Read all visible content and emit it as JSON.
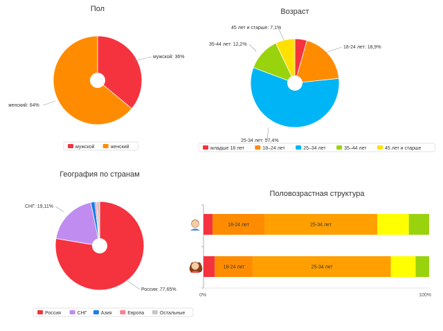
{
  "chart_data": [
    {
      "type": "pie",
      "title": "Пол",
      "categories": [
        "мужской",
        "женский"
      ],
      "values": [
        36,
        64
      ],
      "data_labels": [
        "мужской: 36%",
        "женский: 64%"
      ],
      "colors": [
        "#f5333f",
        "#ff8c00"
      ],
      "legend": [
        "мужской",
        "женский"
      ],
      "legend_position": "bottom"
    },
    {
      "type": "pie",
      "title": "Возраст",
      "categories": [
        "младше 18 лет",
        "18–24 лет",
        "25–34 лет",
        "35–44 лет",
        "45 лет и старше"
      ],
      "values": [
        4.4,
        18.9,
        57.4,
        12.2,
        7.1
      ],
      "data_labels": [
        "",
        "18-24 лет: 18,9%",
        "25-34 лет: 57,4%",
        "35-44 лет: 12,2%",
        "45 лет и старше: 7,1%"
      ],
      "colors": [
        "#f5333f",
        "#ff8c00",
        "#00b5f5",
        "#99d30e",
        "#ffe100"
      ],
      "legend": [
        "младше 18 лет",
        "18–24 лет",
        "25–34 лет",
        "35–44 лет",
        "45 лет и старше"
      ],
      "legend_position": "bottom"
    },
    {
      "type": "pie",
      "title": "География по странам",
      "categories": [
        "Россия",
        "СНГ",
        "Азия",
        "Европа",
        "Остальные"
      ],
      "values": [
        77.65,
        19.11,
        1.5,
        0.6,
        1.14
      ],
      "data_labels": [
        "Россия: 77,65%",
        "СНГ: 19,11%",
        "",
        "",
        ""
      ],
      "colors": [
        "#f5333f",
        "#c08cf0",
        "#1e7de8",
        "#f5838f",
        "#c8c8c8"
      ],
      "legend": [
        "Россия",
        "СНГ",
        "Азия",
        "Европа",
        "Остальные"
      ],
      "legend_position": "bottom"
    },
    {
      "type": "bar",
      "orientation": "horizontal",
      "stacked": true,
      "title": "Половозрастная структура",
      "categories": [
        "мужской",
        "женский"
      ],
      "series": [
        {
          "name": "младше 18 лет",
          "color": "#f5333f",
          "values": [
            4,
            5
          ]
        },
        {
          "name": "18-24 лет",
          "color": "#ff8c00",
          "values": [
            23,
            17
          ]
        },
        {
          "name": "25-34 лет",
          "color": "#ff9f00",
          "values": [
            50,
            61
          ]
        },
        {
          "name": "35-44 лет",
          "color": "#ffff00",
          "values": [
            14,
            11
          ]
        },
        {
          "name": "45 лет и старше",
          "color": "#99d30e",
          "values": [
            9,
            6
          ]
        }
      ],
      "segment_labels": [
        [
          "",
          "18-24 лет",
          "25-34 лет",
          "",
          ""
        ],
        [
          "",
          "18-24 лет",
          "25-34 лет",
          "",
          ""
        ]
      ],
      "xlim": [
        0,
        100
      ],
      "xtick_labels": [
        "0%",
        "100%"
      ]
    }
  ]
}
